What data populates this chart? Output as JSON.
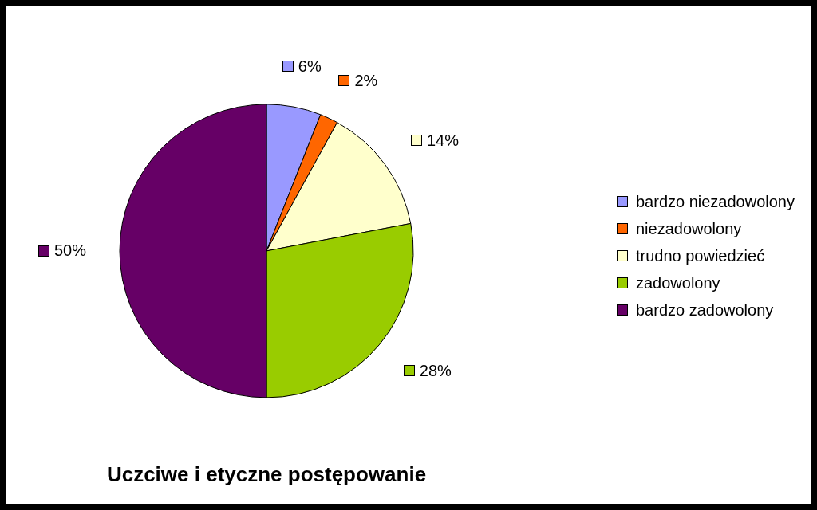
{
  "chart_data": {
    "type": "pie",
    "title": "Uczciwe i etyczne postępowanie",
    "categories": [
      "bardzo niezadowolony",
      "niezadowolony",
      "trudno powiedzieć",
      "zadowolony",
      "bardzo zadowolony"
    ],
    "values": [
      6,
      2,
      14,
      28,
      50
    ],
    "colors": [
      "#9999ff",
      "#ff6600",
      "#ffffcc",
      "#99cc00",
      "#660066"
    ],
    "value_labels": [
      "6%",
      "2%",
      "14%",
      "28%",
      "50%"
    ],
    "legend": "right"
  }
}
